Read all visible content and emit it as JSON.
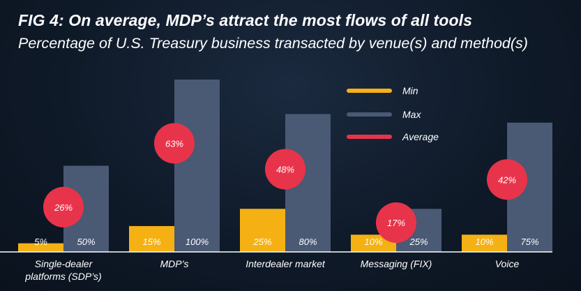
{
  "title": "FIG 4: On average, MDP’s attract the most flows of all tools",
  "subtitle": "Percentage of U.S. Treasury business transacted by venue(s) and method(s)",
  "colors": {
    "min": "#f5b114",
    "max": "#4a5974",
    "average": "#e8344a",
    "axis": "#ffffff",
    "text": "#ffffff"
  },
  "chart_data": {
    "type": "bar",
    "categories": [
      [
        "Single-dealer",
        "platforms (SDP’s)"
      ],
      [
        "MDP’s"
      ],
      [
        "Interdealer market"
      ],
      [
        "Messaging (FIX)"
      ],
      [
        "Voice"
      ]
    ],
    "series": [
      {
        "name": "Min",
        "values": [
          5,
          15,
          25,
          10,
          10
        ],
        "labels": [
          "5%",
          "15%",
          "25%",
          "10%",
          "10%"
        ]
      },
      {
        "name": "Max",
        "values": [
          50,
          100,
          80,
          25,
          75
        ],
        "labels": [
          "50%",
          "100%",
          "80%",
          "25%",
          "75%"
        ]
      },
      {
        "name": "Average",
        "values": [
          26,
          63,
          48,
          17,
          42
        ],
        "labels": [
          "26%",
          "63%",
          "48%",
          "17%",
          "42%"
        ]
      }
    ],
    "ylim": [
      0,
      100
    ],
    "legend": [
      "Min",
      "Max",
      "Average"
    ],
    "legend_position": "top-right",
    "grid": false
  }
}
